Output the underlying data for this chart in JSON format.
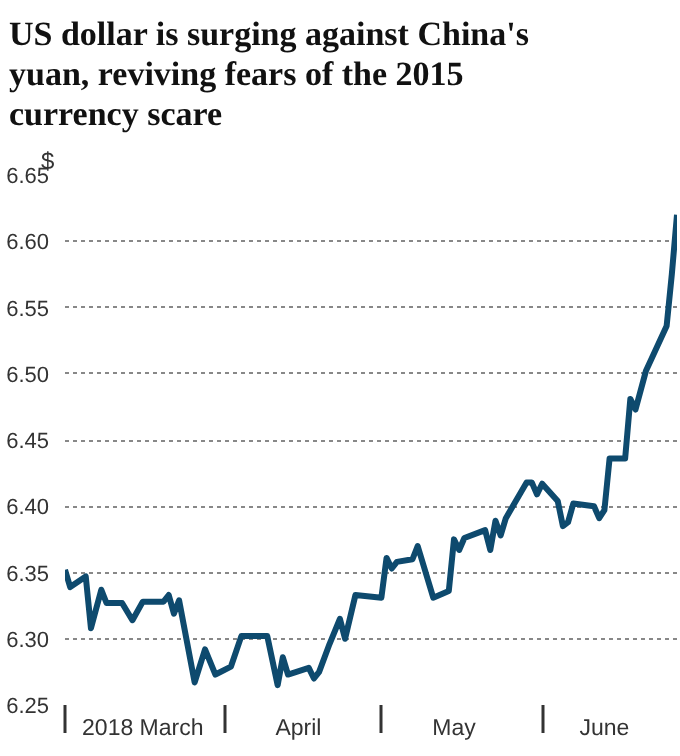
{
  "chart_data": {
    "type": "line",
    "title": "US dollar is surging against China's yuan, reviving fears of the 2015 currency scare",
    "ylabel": "$",
    "x": [
      "2018-03-01",
      "2018-03-02",
      "2018-03-05",
      "2018-03-06",
      "2018-03-08",
      "2018-03-09",
      "2018-03-12",
      "2018-03-14",
      "2018-03-16",
      "2018-03-20",
      "2018-03-21",
      "2018-03-22",
      "2018-03-23",
      "2018-03-26",
      "2018-03-28",
      "2018-03-30",
      "2018-04-02",
      "2018-04-04",
      "2018-04-09",
      "2018-04-11",
      "2018-04-12",
      "2018-04-13",
      "2018-04-17",
      "2018-04-18",
      "2018-04-19",
      "2018-04-21",
      "2018-04-23",
      "2018-04-24",
      "2018-04-26",
      "2018-05-01",
      "2018-05-02",
      "2018-05-03",
      "2018-05-04",
      "2018-05-07",
      "2018-05-08",
      "2018-05-11",
      "2018-05-14",
      "2018-05-15",
      "2018-05-16",
      "2018-05-17",
      "2018-05-21",
      "2018-05-22",
      "2018-05-23",
      "2018-05-24",
      "2018-05-25",
      "2018-05-29",
      "2018-05-30",
      "2018-05-31",
      "2018-06-01",
      "2018-06-04",
      "2018-06-05",
      "2018-06-06",
      "2018-06-07",
      "2018-06-11",
      "2018-06-12",
      "2018-06-13",
      "2018-06-14",
      "2018-06-17",
      "2018-06-18",
      "2018-06-19",
      "2018-06-21",
      "2018-06-25",
      "2018-06-26",
      "2018-06-27"
    ],
    "series": [
      {
        "color": "#0e4a6e",
        "values": [
          6.352,
          6.339,
          6.347,
          6.308,
          6.337,
          6.327,
          6.327,
          6.314,
          6.328,
          6.328,
          6.333,
          6.319,
          6.329,
          6.267,
          6.292,
          6.273,
          6.279,
          6.302,
          6.302,
          6.265,
          6.286,
          6.273,
          6.278,
          6.27,
          6.275,
          6.296,
          6.315,
          6.3,
          6.333,
          6.331,
          6.361,
          6.353,
          6.358,
          6.36,
          6.37,
          6.331,
          6.336,
          6.375,
          6.367,
          6.376,
          6.382,
          6.367,
          6.389,
          6.378,
          6.391,
          6.418,
          6.418,
          6.409,
          6.417,
          6.404,
          6.385,
          6.388,
          6.402,
          6.4,
          6.391,
          6.397,
          6.436,
          6.436,
          6.481,
          6.473,
          6.502,
          6.536,
          6.575,
          6.62
        ]
      }
    ],
    "xlim": [
      "2018-03-01",
      "2018-06-27"
    ],
    "xticks": [
      {
        "value": "2018-03-01",
        "label": null
      },
      {
        "value": "2018-03-16",
        "label": "2018 March"
      },
      {
        "value": "2018-04-01",
        "label": null
      },
      {
        "value": "2018-04-15",
        "label": "April"
      },
      {
        "value": "2018-05-01",
        "label": null
      },
      {
        "value": "2018-05-15",
        "label": "May"
      },
      {
        "value": "2018-06-01",
        "label": null
      },
      {
        "value": "2018-06-13",
        "label": "June"
      }
    ],
    "ylim": [
      6.25,
      6.65
    ],
    "yticks": [
      6.25,
      {
        "value": 6.3,
        "label": "6.30"
      },
      6.35,
      {
        "value": 6.4,
        "label": "6.40"
      },
      6.45,
      {
        "value": 6.5,
        "label": "6.50"
      },
      6.55,
      {
        "value": 6.6,
        "label": "6.60"
      },
      6.65
    ],
    "grid": "y",
    "line_style": "solid",
    "marker": "none"
  }
}
